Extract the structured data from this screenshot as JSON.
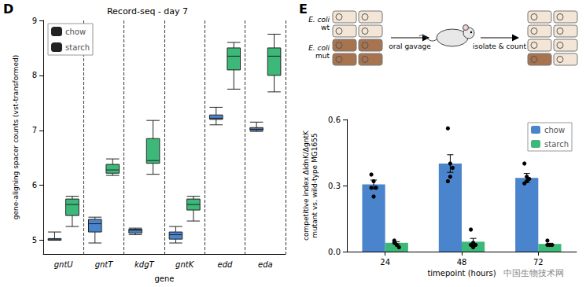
{
  "chart_data": [
    {
      "type": "boxplot",
      "title": "Record-seq - day 7",
      "x_label": "gene",
      "y_label": "gene-aligning spacer counts (vst-transformed)",
      "categories": [
        "gntU",
        "gntT",
        "kdgT",
        "gntK",
        "edd",
        "eda"
      ],
      "series": [
        {
          "name": "chow",
          "color": "#4a84cc",
          "values": [
            [
              5.0,
              5.0,
              5.02,
              5.03,
              5.15
            ],
            [
              4.95,
              5.15,
              5.3,
              5.38,
              5.42
            ],
            [
              5.1,
              5.13,
              5.18,
              5.2,
              5.22
            ],
            [
              4.95,
              5.02,
              5.1,
              5.15,
              5.25
            ],
            [
              7.1,
              7.2,
              7.22,
              7.28,
              7.42
            ],
            [
              6.98,
              7.0,
              7.02,
              7.05,
              7.15
            ]
          ]
        },
        {
          "name": "starch",
          "color": "#3cb878",
          "values": [
            [
              5.25,
              5.45,
              5.65,
              5.75,
              5.8
            ],
            [
              6.18,
              6.22,
              6.28,
              6.38,
              6.48
            ],
            [
              6.2,
              6.4,
              6.45,
              6.85,
              7.18
            ],
            [
              5.35,
              5.55,
              5.65,
              5.75,
              5.8
            ],
            [
              7.75,
              8.1,
              8.35,
              8.5,
              8.6
            ],
            [
              7.7,
              8.0,
              8.35,
              8.5,
              8.75
            ]
          ]
        }
      ],
      "ylim": [
        4.75,
        9
      ],
      "yticks": [
        5,
        6,
        7,
        8,
        9
      ],
      "grid": false,
      "legend": "upper left"
    },
    {
      "type": "bar",
      "x_label": "timepoint (hours)",
      "y_label": "competitive index ΔidnK/ΔgntK\nmutant vs. wild-type MG1655",
      "categories": [
        "24",
        "48",
        "72"
      ],
      "series": [
        {
          "name": "chow",
          "color": "#4a84cc",
          "values": [
            0.305,
            0.4,
            0.335
          ],
          "errors": [
            0.02,
            0.04,
            0.02
          ],
          "points": [
            [
              0.35,
              0.32,
              0.29,
              0.29,
              0.25
            ],
            [
              0.56,
              0.4,
              0.38,
              0.32,
              0.34
            ],
            [
              0.4,
              0.34,
              0.33,
              0.31,
              0.32
            ]
          ]
        },
        {
          "name": "starch",
          "color": "#3cb878",
          "values": [
            0.04,
            0.045,
            0.035
          ],
          "errors": [
            0.005,
            0.015,
            0.003
          ],
          "points": [
            [
              0.05,
              0.03,
              0.02,
              0.04
            ],
            [
              0.1,
              0.02,
              0.03,
              0.03,
              0.04
            ],
            [
              0.05,
              0.03,
              0.03,
              0.03
            ]
          ]
        }
      ],
      "ylim": [
        0,
        0.6
      ],
      "yticks": [
        {
          "value": 0,
          "label": "0.0"
        },
        {
          "value": 0.3,
          "label": "0.3"
        },
        {
          "value": 0.6,
          "label": "0.6"
        }
      ],
      "grid": false,
      "legend": "upper right"
    }
  ],
  "panel_labels": [
    "D",
    "E"
  ],
  "diagram": {
    "strains": [
      "E. coli wt",
      "E. coli mut"
    ],
    "steps": [
      "oral gavage",
      "isolate & count"
    ]
  },
  "watermark": "中国生物技术网"
}
